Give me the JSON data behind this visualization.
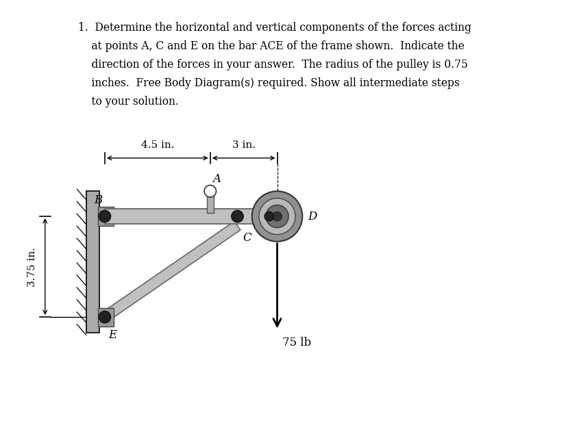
{
  "bg": "#ffffff",
  "text_line1": "1.  Determine the horizontal and vertical components of the forces acting",
  "text_line2": "    at points A, C and E on the bar ACE of the frame shown.  Indicate the",
  "text_line3": "    direction of the forces in your answer.  The radius of the pulley is 0.75",
  "text_line4": "    inches.  Free Body Diagram(s) required. Show all intermediate steps",
  "text_line5": "    to your solution.",
  "label_45in": "4.5 in.",
  "label_3in": "3 in.",
  "label_A": "A",
  "label_B": "B",
  "label_C": "C",
  "label_D": "D",
  "label_E": "E",
  "label_75lb": "75 lb",
  "label_375in": "3.75 in.",
  "wall_color": "#aaaaaa",
  "bar_color": "#c0c0c0",
  "bar_edge": "#666666",
  "pin_color": "#222222",
  "pulley_outer_color": "#888888",
  "pulley_mid_color": "#aaaaaa",
  "pulley_hub_color": "#555555"
}
